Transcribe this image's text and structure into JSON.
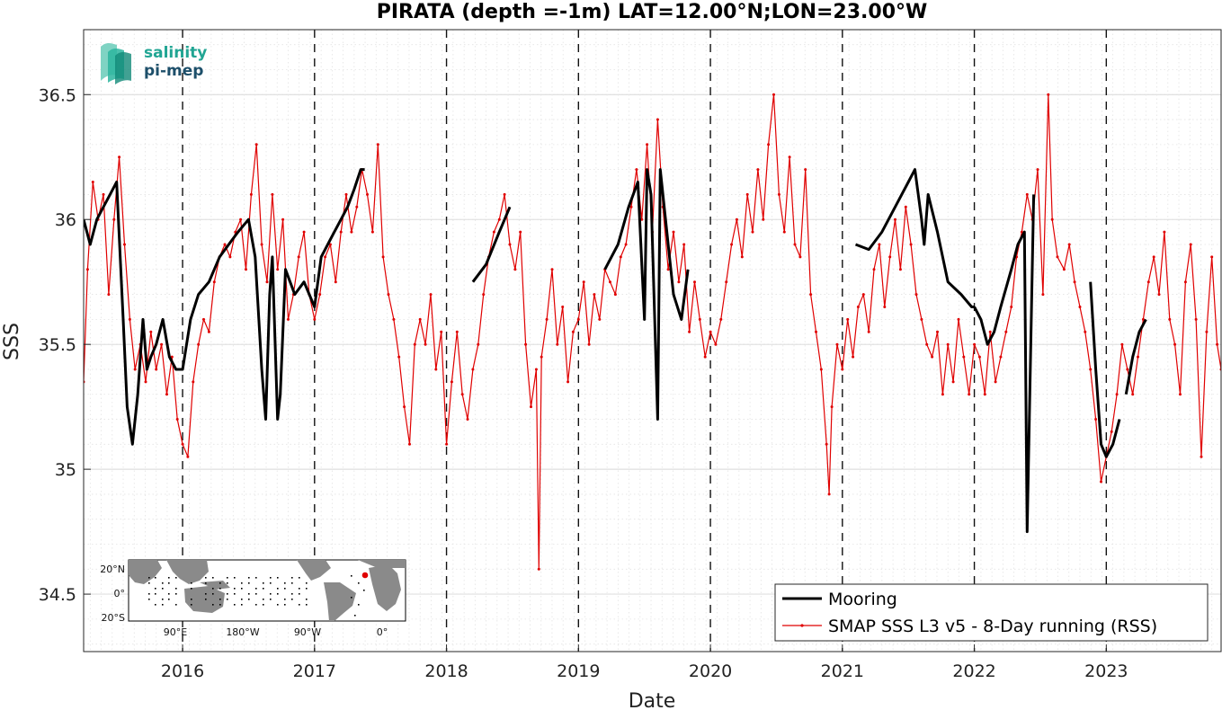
{
  "chart_data": {
    "type": "line",
    "title": "PIRATA (depth =-1m) LAT=12.00°N;LON=23.00°W",
    "xlabel": "Date",
    "ylabel": "SSS",
    "xlim": [
      2015.25,
      2023.87
    ],
    "ylim": [
      34.27,
      36.76
    ],
    "xticks": [
      2016,
      2017,
      2018,
      2019,
      2020,
      2021,
      2022,
      2023
    ],
    "xtick_labels": [
      "2016",
      "2017",
      "2018",
      "2019",
      "2020",
      "2021",
      "2022",
      "2023"
    ],
    "yticks": [
      34.5,
      35,
      35.5,
      36,
      36.5
    ],
    "ytick_labels": [
      "34.5",
      "35",
      "35.5",
      "36",
      "36.5"
    ],
    "grid": true,
    "year_boundary_lines": [
      2016,
      2017,
      2018,
      2019,
      2020,
      2021,
      2022,
      2023
    ],
    "legend_position": "bottom-right",
    "series": [
      {
        "name": "Mooring",
        "color": "#000000",
        "style": "thick-line",
        "x": [
          2015.25,
          2015.3,
          2015.35,
          2015.4,
          2015.45,
          2015.5,
          2015.55,
          2015.58,
          2015.62,
          2015.66,
          2015.7,
          2015.73,
          2015.76,
          2015.8,
          2015.85,
          2015.9,
          2015.95,
          2016.0,
          2016.03,
          2016.06,
          2016.12,
          2016.2,
          2016.28,
          2016.35,
          2016.42,
          2016.5,
          2016.55,
          2016.6,
          2016.63,
          2016.66,
          2016.68,
          2016.72,
          2016.74,
          2016.78,
          2016.85,
          2016.92,
          2017.0,
          2017.05,
          2017.1,
          2017.15,
          2017.2,
          2017.25,
          2017.3,
          2017.35,
          2017.38,
          null,
          2018.2,
          2018.3,
          2018.4,
          2018.48,
          null,
          2019.2,
          2019.3,
          2019.38,
          2019.45,
          2019.5,
          2019.52,
          2019.55,
          2019.6,
          2019.62,
          2019.68,
          2019.72,
          2019.78,
          2019.83,
          null,
          2021.1,
          2021.2,
          2021.3,
          2021.4,
          2021.5,
          2021.55,
          2021.6,
          2021.62,
          2021.65,
          2021.72,
          2021.8,
          2021.9,
          2021.98,
          2022.0,
          null,
          2022.0,
          2022.05,
          2022.1,
          2022.15,
          2022.2,
          2022.28,
          2022.33,
          2022.38,
          2022.4,
          2022.45,
          null,
          2022.88,
          2022.92,
          2022.96,
          2023.0,
          2023.05,
          2023.1,
          null,
          2023.15,
          2023.2,
          2023.25,
          2023.3
        ],
        "y": [
          36.0,
          35.9,
          36.0,
          36.05,
          36.1,
          36.15,
          35.6,
          35.25,
          35.1,
          35.3,
          35.6,
          35.4,
          35.45,
          35.5,
          35.6,
          35.45,
          35.4,
          35.4,
          35.5,
          35.6,
          35.7,
          35.75,
          35.85,
          35.9,
          35.95,
          36.0,
          35.85,
          35.4,
          35.2,
          35.7,
          35.85,
          35.2,
          35.3,
          35.8,
          35.7,
          35.75,
          35.65,
          35.85,
          35.9,
          35.95,
          36.0,
          36.05,
          36.12,
          36.2,
          36.2,
          null,
          35.75,
          35.82,
          35.95,
          36.05,
          null,
          35.8,
          35.9,
          36.05,
          36.15,
          35.6,
          36.2,
          36.1,
          35.2,
          36.2,
          35.9,
          35.7,
          35.6,
          35.8,
          null,
          35.9,
          35.88,
          35.95,
          36.05,
          36.15,
          36.2,
          36.0,
          35.9,
          36.1,
          35.95,
          35.75,
          35.7,
          35.65,
          35.65,
          null,
          35.65,
          35.6,
          35.5,
          35.55,
          35.65,
          35.8,
          35.9,
          35.95,
          34.75,
          36.1,
          null,
          35.75,
          35.4,
          35.1,
          35.05,
          35.1,
          35.2,
          null,
          35.3,
          35.45,
          35.55,
          35.6
        ]
      },
      {
        "name": "SMAP SSS L3 v5 - 8-Day running (RSS)",
        "color": "#e00000",
        "style": "thin-line-dots",
        "x": [
          2015.25,
          2015.28,
          2015.32,
          2015.36,
          2015.4,
          2015.44,
          2015.48,
          2015.52,
          2015.56,
          2015.6,
          2015.64,
          2015.68,
          2015.72,
          2015.76,
          2015.8,
          2015.84,
          2015.88,
          2015.92,
          2015.96,
          2016.0,
          2016.04,
          2016.08,
          2016.12,
          2016.16,
          2016.2,
          2016.24,
          2016.28,
          2016.32,
          2016.36,
          2016.4,
          2016.44,
          2016.48,
          2016.52,
          2016.56,
          2016.6,
          2016.64,
          2016.68,
          2016.72,
          2016.76,
          2016.8,
          2016.84,
          2016.88,
          2016.92,
          2016.96,
          2017.0,
          2017.04,
          2017.08,
          2017.12,
          2017.16,
          2017.2,
          2017.24,
          2017.28,
          2017.32,
          2017.36,
          2017.4,
          2017.44,
          2017.48,
          2017.52,
          2017.56,
          2017.6,
          2017.64,
          2017.68,
          2017.72,
          2017.76,
          2017.8,
          2017.84,
          2017.88,
          2017.92,
          2017.96,
          2018.0,
          2018.04,
          2018.08,
          2018.12,
          2018.16,
          2018.2,
          2018.24,
          2018.28,
          2018.32,
          2018.36,
          2018.4,
          2018.44,
          2018.48,
          2018.52,
          2018.56,
          2018.6,
          2018.64,
          2018.68,
          2018.7,
          2018.72,
          2018.76,
          2018.8,
          2018.84,
          2018.88,
          2018.92,
          2018.96,
          2019.0,
          2019.04,
          2019.08,
          2019.12,
          2019.16,
          2019.2,
          2019.24,
          2019.28,
          2019.32,
          2019.36,
          2019.4,
          2019.44,
          2019.48,
          2019.52,
          2019.56,
          2019.6,
          2019.64,
          2019.68,
          2019.72,
          2019.76,
          2019.8,
          2019.84,
          2019.88,
          2019.92,
          2019.96,
          2020.0,
          2020.04,
          2020.08,
          2020.12,
          2020.16,
          2020.2,
          2020.24,
          2020.28,
          2020.32,
          2020.36,
          2020.4,
          2020.44,
          2020.48,
          2020.52,
          2020.56,
          2020.6,
          2020.64,
          2020.68,
          2020.72,
          2020.76,
          2020.8,
          2020.84,
          2020.88,
          2020.9,
          2020.92,
          2020.96,
          2021.0,
          2021.04,
          2021.08,
          2021.12,
          2021.16,
          2021.2,
          2021.24,
          2021.28,
          2021.32,
          2021.36,
          2021.4,
          2021.44,
          2021.48,
          2021.52,
          2021.56,
          2021.6,
          2021.64,
          2021.68,
          2021.72,
          2021.76,
          2021.8,
          2021.84,
          2021.88,
          2021.92,
          2021.96,
          2022.0,
          2022.04,
          2022.08,
          2022.12,
          2022.16,
          2022.2,
          2022.24,
          2022.28,
          2022.32,
          2022.36,
          2022.4,
          2022.44,
          2022.48,
          2022.52,
          2022.56,
          2022.59,
          2022.63,
          2022.68,
          2022.72,
          2022.76,
          2022.8,
          2022.84,
          2022.88,
          2022.92,
          2022.96,
          2023.0,
          2023.04,
          2023.08,
          2023.12,
          2023.16,
          2023.2,
          2023.24,
          2023.28,
          2023.32,
          2023.36,
          2023.4,
          2023.44,
          2023.48,
          2023.52,
          2023.56,
          2023.6,
          2023.64,
          2023.68,
          2023.72,
          2023.76,
          2023.8,
          2023.84,
          2023.87
        ],
        "y": [
          35.35,
          35.8,
          36.15,
          36.0,
          36.1,
          35.7,
          36.0,
          36.25,
          35.9,
          35.6,
          35.4,
          35.5,
          35.35,
          35.55,
          35.4,
          35.5,
          35.3,
          35.45,
          35.2,
          35.1,
          35.05,
          35.35,
          35.5,
          35.6,
          35.55,
          35.75,
          35.85,
          35.9,
          35.85,
          35.95,
          36.0,
          35.8,
          36.1,
          36.3,
          35.9,
          35.75,
          36.1,
          35.8,
          36.0,
          35.6,
          35.7,
          35.85,
          35.95,
          35.7,
          35.6,
          35.7,
          35.85,
          35.9,
          35.75,
          35.95,
          36.1,
          35.95,
          36.05,
          36.2,
          36.1,
          35.95,
          36.3,
          35.85,
          35.7,
          35.6,
          35.45,
          35.25,
          35.1,
          35.5,
          35.6,
          35.5,
          35.7,
          35.4,
          35.55,
          35.1,
          35.35,
          35.55,
          35.3,
          35.2,
          35.4,
          35.5,
          35.7,
          35.85,
          35.95,
          36.0,
          36.1,
          35.9,
          35.8,
          35.95,
          35.5,
          35.25,
          35.4,
          34.6,
          35.45,
          35.6,
          35.8,
          35.5,
          35.65,
          35.35,
          35.55,
          35.6,
          35.75,
          35.5,
          35.7,
          35.6,
          35.8,
          35.75,
          35.7,
          35.85,
          35.9,
          36.05,
          36.2,
          36.0,
          36.3,
          35.95,
          36.4,
          36.05,
          35.8,
          35.95,
          35.75,
          35.9,
          35.55,
          35.75,
          35.6,
          35.45,
          35.55,
          35.5,
          35.6,
          35.75,
          35.9,
          36.0,
          35.85,
          36.1,
          35.95,
          36.2,
          36.0,
          36.3,
          36.5,
          36.1,
          35.95,
          36.25,
          35.9,
          35.85,
          36.2,
          35.7,
          35.55,
          35.4,
          35.1,
          34.9,
          35.25,
          35.5,
          35.4,
          35.6,
          35.45,
          35.65,
          35.7,
          35.55,
          35.8,
          35.9,
          35.65,
          35.85,
          36.0,
          35.8,
          36.05,
          35.9,
          35.7,
          35.6,
          35.5,
          35.45,
          35.55,
          35.3,
          35.5,
          35.35,
          35.6,
          35.45,
          35.3,
          35.5,
          35.45,
          35.3,
          35.55,
          35.35,
          35.45,
          35.55,
          35.65,
          35.85,
          35.95,
          36.1,
          36.0,
          36.2,
          35.7,
          36.5,
          36.0,
          35.85,
          35.8,
          35.9,
          35.75,
          35.65,
          35.55,
          35.4,
          35.2,
          34.95,
          35.05,
          35.15,
          35.3,
          35.5,
          35.4,
          35.3,
          35.45,
          35.6,
          35.75,
          35.85,
          35.7,
          35.95,
          35.6,
          35.5,
          35.3,
          35.75,
          35.9,
          35.6,
          35.05,
          35.55,
          35.85,
          35.5,
          35.4
        ]
      }
    ]
  },
  "logo": {
    "line1": "salinity",
    "line2": "pi-mep"
  },
  "inset_map": {
    "lat_labels": [
      "20°N",
      "0°",
      "20°S"
    ],
    "lon_labels": [
      "90°E",
      "180°W",
      "90°W",
      "0°"
    ]
  }
}
